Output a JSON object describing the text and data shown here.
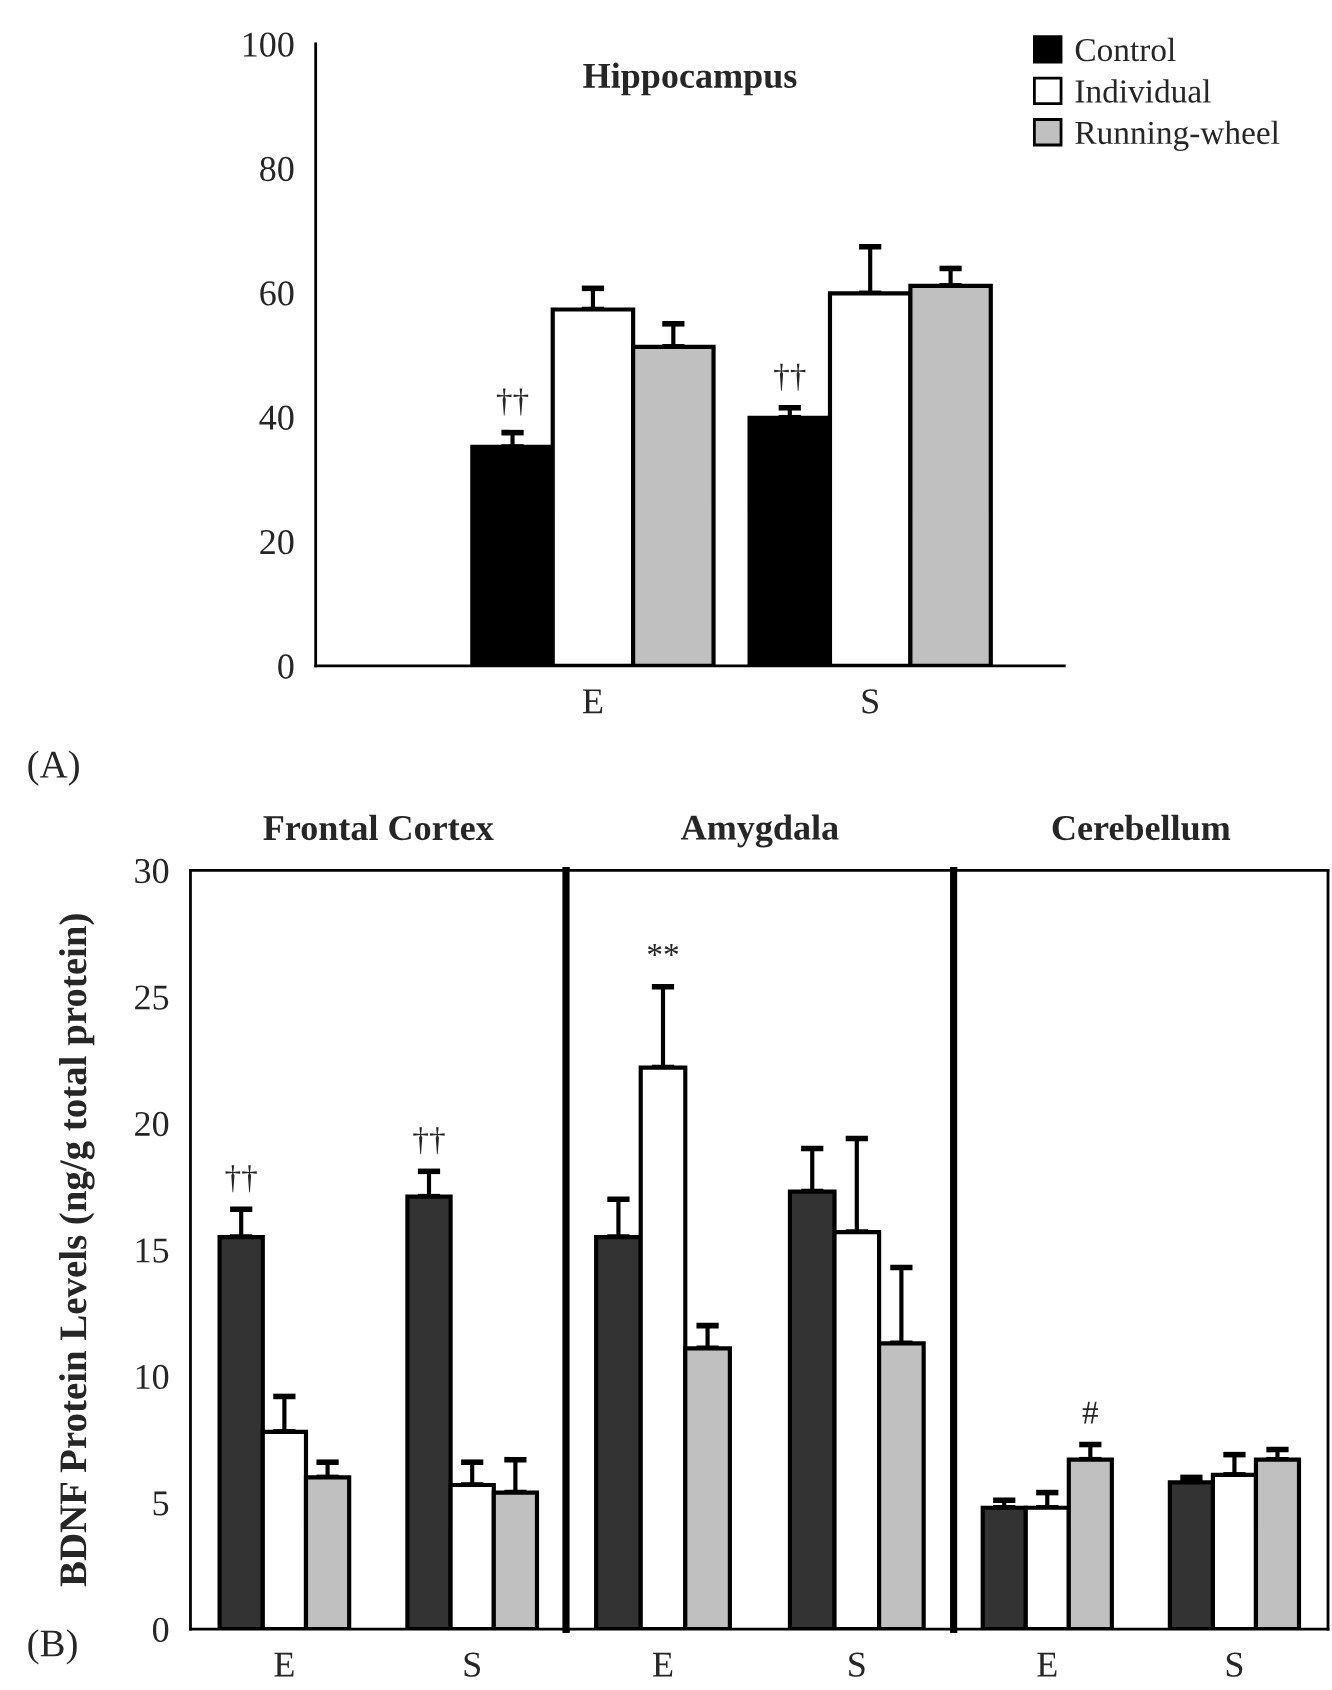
{
  "chart_data": [
    {
      "type": "bar",
      "title": "Hippocampus",
      "categories": [
        "E",
        "S"
      ],
      "ylim": [
        0,
        100
      ],
      "yticks": [
        0,
        20,
        40,
        60,
        80,
        100
      ],
      "legend": "top right",
      "grid": false,
      "series": [
        {
          "name": "Control",
          "color": "#000000",
          "values": [
            35.2,
            39.9
          ],
          "errors": [
            2.3,
            1.6
          ]
        },
        {
          "name": "Individual",
          "color": "#ffffff",
          "values": [
            57.3,
            59.9
          ],
          "errors": [
            3.4,
            7.5
          ]
        },
        {
          "name": "Running-wheel",
          "color": "#c0c0c0",
          "values": [
            51.3,
            61.1
          ],
          "errors": [
            3.7,
            2.8
          ]
        }
      ],
      "annotations": [
        "††",
        "††",
        "(A)"
      ]
    },
    {
      "type": "bar",
      "title": "Frontal Cortex",
      "ylabel": "BDNF Protein Levels (ng/g total protein)",
      "categories": [
        "E",
        "S"
      ],
      "ylim": [
        0,
        30
      ],
      "yticks": [
        0,
        5,
        10,
        15,
        20,
        25,
        30
      ],
      "grid": false,
      "series": [
        {
          "color": "#333333",
          "values": [
            15.5,
            17.1
          ],
          "errors": [
            1.1,
            1.0
          ]
        },
        {
          "color": "#ffffff",
          "values": [
            7.8,
            5.7
          ],
          "errors": [
            1.4,
            0.9
          ]
        },
        {
          "color": "#c0c0c0",
          "values": [
            6.0,
            5.4
          ],
          "errors": [
            0.6,
            1.3
          ]
        }
      ],
      "annotations": [
        "††",
        "††",
        "(B)"
      ]
    },
    {
      "type": "bar",
      "title": "Amygdala",
      "categories": [
        "E",
        "S"
      ],
      "ylim": [
        0,
        30
      ],
      "yticks": [
        0,
        5,
        10,
        15,
        20,
        25,
        30
      ],
      "tick_labels": "x",
      "grid": false,
      "series": [
        {
          "color": "#333333",
          "values": [
            15.5,
            17.3
          ],
          "errors": [
            1.5,
            1.7
          ]
        },
        {
          "color": "#ffffff",
          "values": [
            22.2,
            15.7
          ],
          "errors": [
            3.2,
            3.7
          ]
        },
        {
          "color": "#c0c0c0",
          "values": [
            11.1,
            11.3
          ],
          "errors": [
            0.9,
            3.0
          ]
        }
      ],
      "annotations": [
        "**"
      ]
    },
    {
      "type": "bar",
      "title": "Cerebellum",
      "categories": [
        "E",
        "S"
      ],
      "ylim": [
        0,
        30
      ],
      "yticks": [
        0,
        5,
        10,
        15,
        20,
        25,
        30
      ],
      "tick_labels": "x",
      "grid": false,
      "series": [
        {
          "color": "#333333",
          "values": [
            4.8,
            5.8
          ],
          "errors": [
            0.3,
            0.2
          ]
        },
        {
          "color": "#ffffff",
          "values": [
            4.8,
            6.1
          ],
          "errors": [
            0.6,
            0.8
          ]
        },
        {
          "color": "#c0c0c0",
          "values": [
            6.7,
            6.7
          ],
          "errors": [
            0.6,
            0.4
          ]
        }
      ],
      "annotations": [
        "#"
      ]
    }
  ]
}
